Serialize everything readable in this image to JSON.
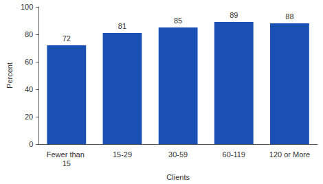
{
  "chart_data": {
    "type": "bar",
    "categories": [
      "Fewer than 15",
      "15-29",
      "30-59",
      "60-119",
      "120 or More"
    ],
    "values": [
      72,
      81,
      85,
      89,
      88
    ],
    "color": "#1a50b4",
    "x_label": "Clients",
    "y_label": "Percent",
    "ylim": [
      0,
      100
    ],
    "yticks": [
      0,
      20,
      40,
      60,
      80,
      100
    ],
    "grid": false,
    "data_labels": true
  }
}
